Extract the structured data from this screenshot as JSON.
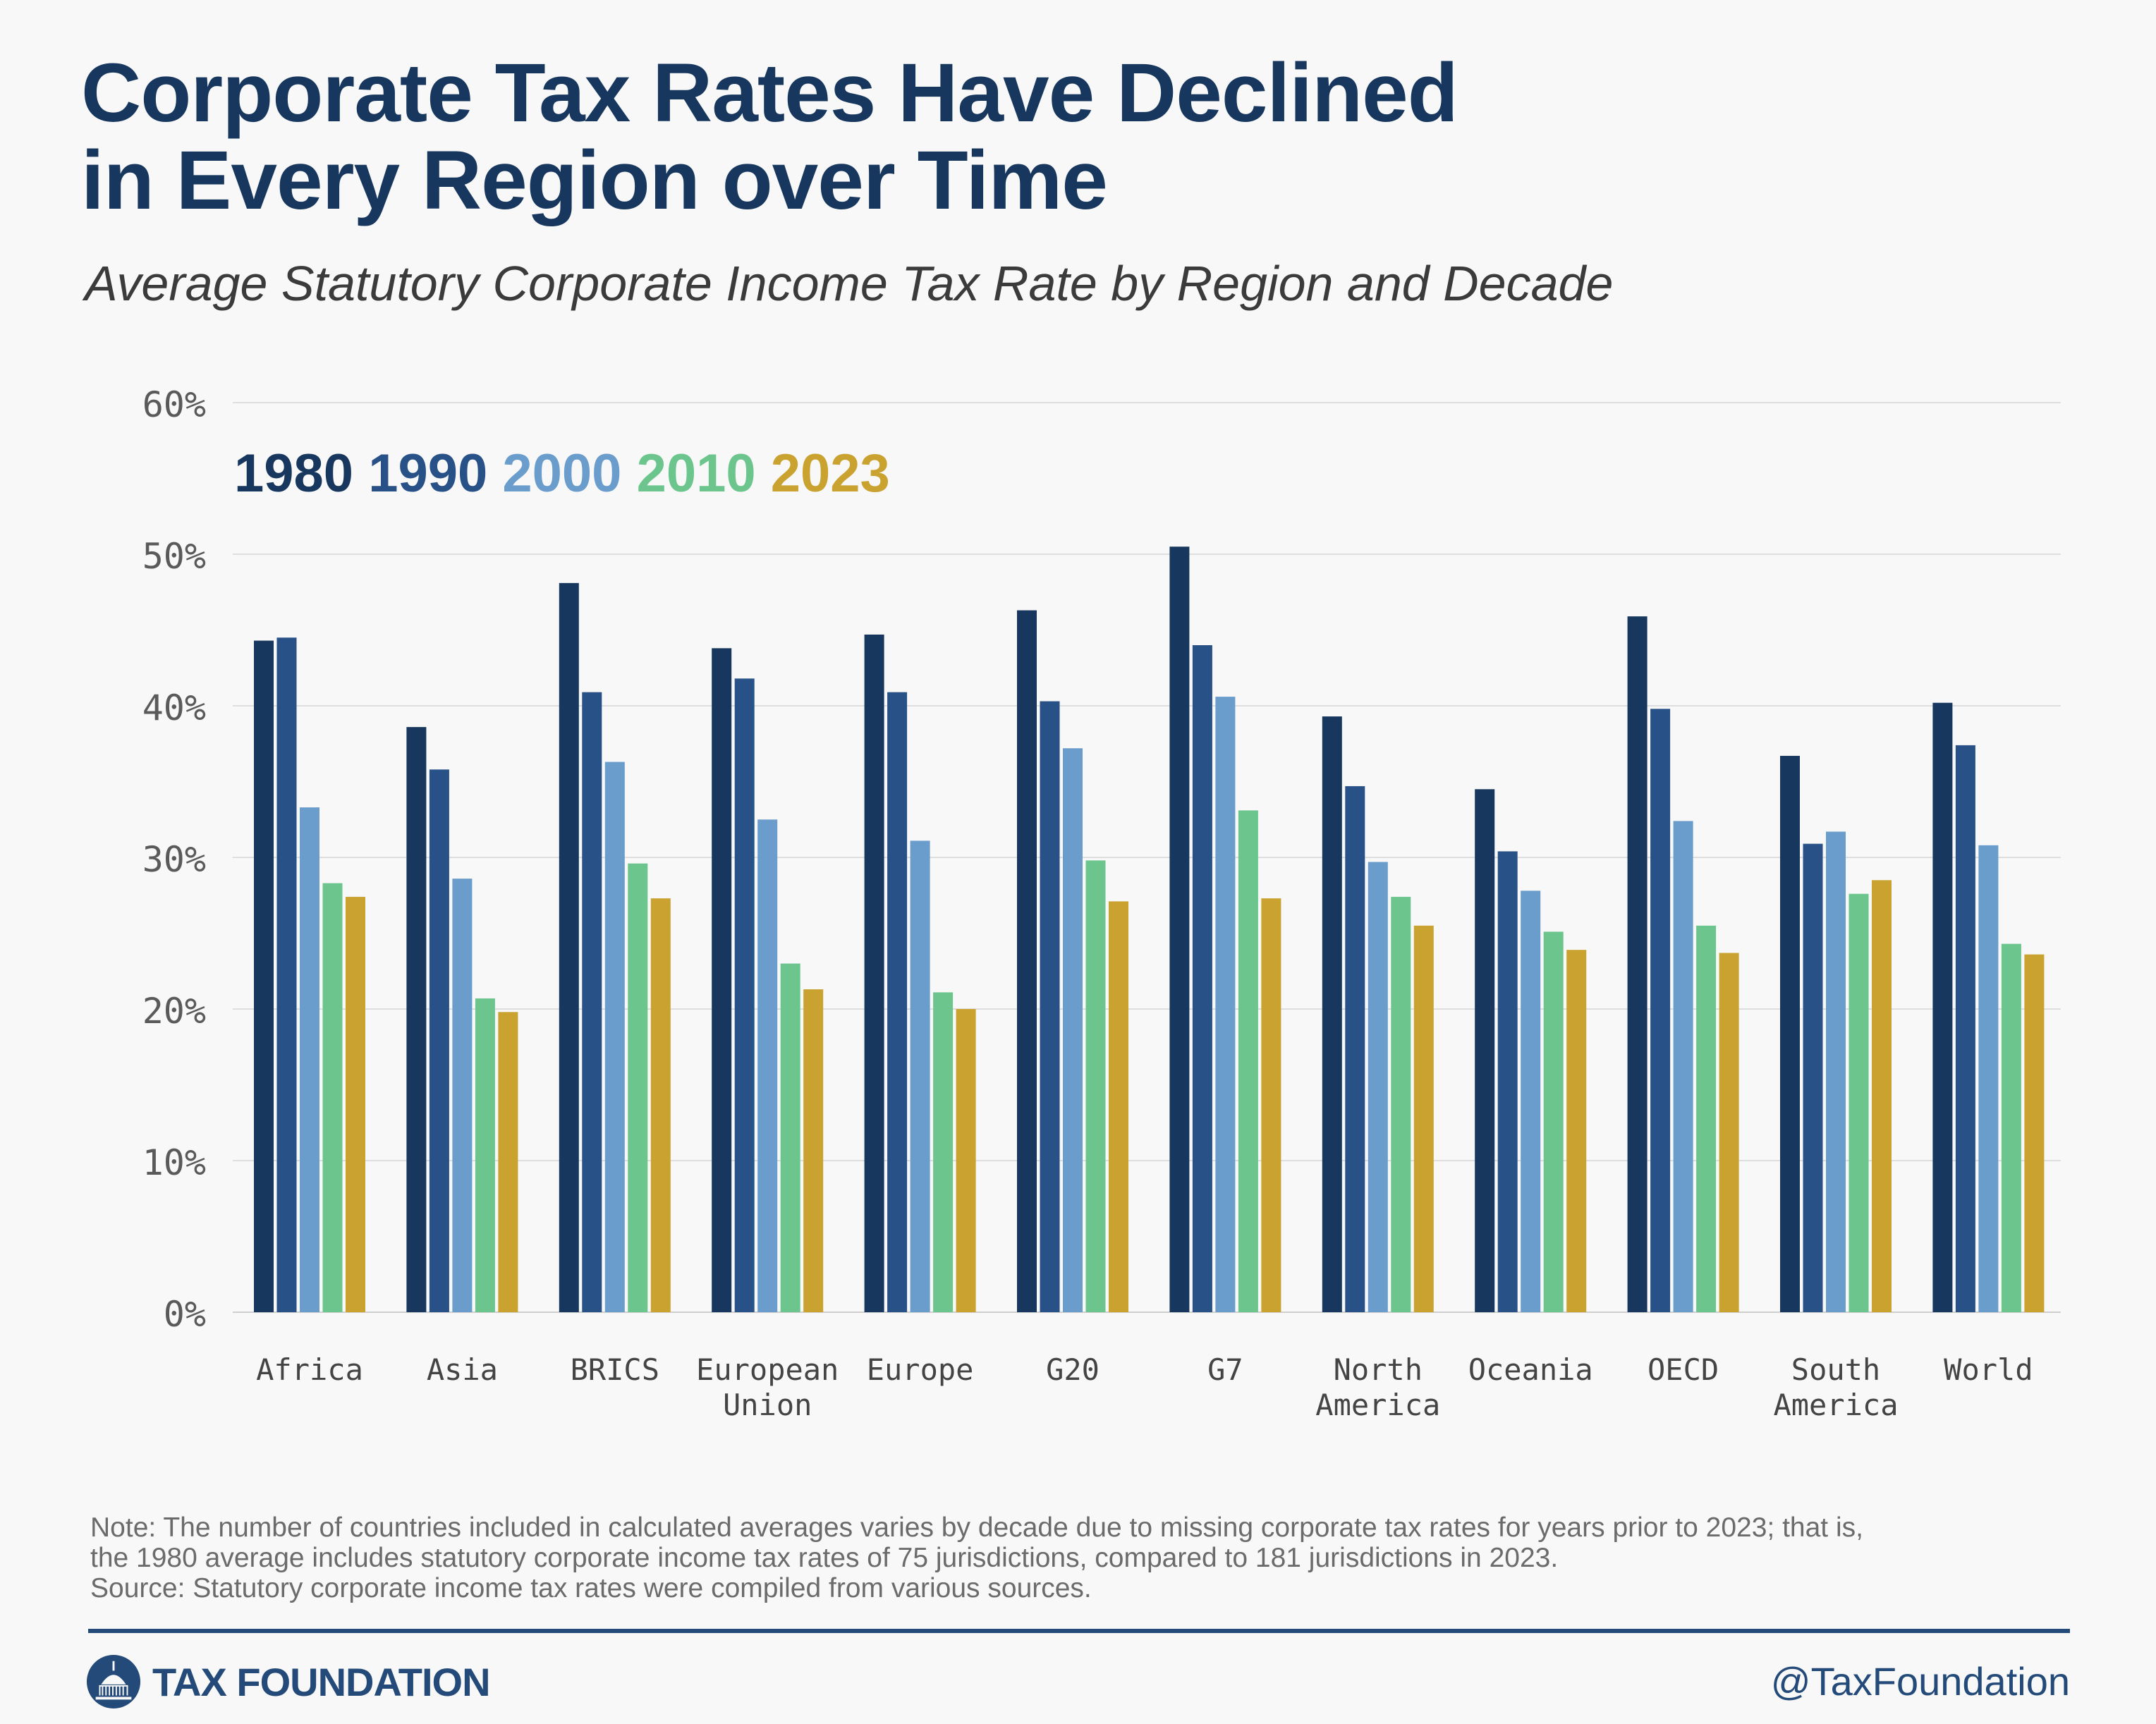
{
  "title_line1": "Corporate Tax Rates Have Declined",
  "title_line2": "in Every Region over Time",
  "subtitle": "Average Statutory Corporate Income Tax Rate by Region and Decade",
  "note_line1": "Note: The number of countries included in calculated averages varies by decade due to missing corporate tax rates for years prior to 2023; that is,",
  "note_line2": "the 1980 average includes statutory corporate income tax rates of 75 jurisdictions, compared to 181 jurisdictions in 2023.",
  "source": "Source: Statutory corporate income tax rates were compiled from various sources.",
  "brand": "TAX FOUNDATION",
  "handle": "@TaxFoundation",
  "chart_data": {
    "type": "bar",
    "title": "Corporate Tax Rates Have Declined in Every Region over Time",
    "subtitle": "Average Statutory Corporate Income Tax Rate by Region and Decade",
    "categories": [
      [
        "Africa"
      ],
      [
        "Asia"
      ],
      [
        "BRICS"
      ],
      [
        "European",
        "Union"
      ],
      [
        "Europe"
      ],
      [
        "G20"
      ],
      [
        "G7"
      ],
      [
        "North",
        "America"
      ],
      [
        "Oceania"
      ],
      [
        "OECD"
      ],
      [
        "South",
        "America"
      ],
      [
        "World"
      ]
    ],
    "series": [
      {
        "name": "1980",
        "color": "#17375e",
        "values": [
          44.3,
          38.6,
          48.1,
          43.8,
          44.7,
          46.3,
          50.5,
          39.3,
          34.5,
          45.9,
          36.7,
          40.2
        ]
      },
      {
        "name": "1990",
        "color": "#285187",
        "values": [
          44.5,
          35.8,
          40.9,
          41.8,
          40.9,
          40.3,
          44.0,
          34.7,
          30.4,
          39.8,
          30.9,
          37.4
        ]
      },
      {
        "name": "2000",
        "color": "#6a9ccc",
        "values": [
          33.3,
          28.6,
          36.3,
          32.5,
          31.1,
          37.2,
          40.6,
          29.7,
          27.8,
          32.4,
          31.7,
          30.8
        ]
      },
      {
        "name": "2010",
        "color": "#6dc58e",
        "values": [
          28.3,
          20.7,
          29.6,
          23.0,
          21.1,
          29.8,
          33.1,
          27.4,
          25.1,
          25.5,
          27.6,
          24.3
        ]
      },
      {
        "name": "2023",
        "color": "#c9a230",
        "values": [
          27.4,
          19.8,
          27.3,
          21.3,
          20.0,
          27.1,
          27.3,
          25.5,
          23.9,
          23.7,
          28.5,
          23.6
        ]
      }
    ],
    "y_ticks": [
      "0%",
      "10%",
      "20%",
      "30%",
      "40%",
      "50%",
      "60%"
    ],
    "ylim": [
      0,
      60
    ],
    "grid": true,
    "legend_position": "top-left"
  }
}
